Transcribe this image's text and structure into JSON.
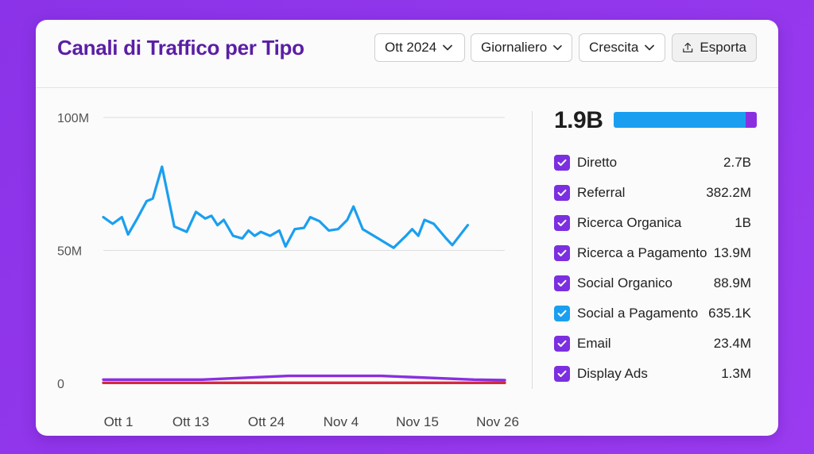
{
  "header": {
    "title": "Canali di Traffico per Tipo",
    "month_select": "Ott 2024",
    "granularity_select": "Giornaliero",
    "mode_select": "Crescita",
    "export_label": "Esporta"
  },
  "summary": {
    "total": "1.9B",
    "bar_colors": [
      "#1a9ff0",
      "#8a2fe0"
    ],
    "bar_fractions": [
      0.92,
      0.08
    ]
  },
  "legend": [
    {
      "label": "Diretto",
      "value": "2.7B",
      "color": "#7b2fe0",
      "checked": true
    },
    {
      "label": "Referral",
      "value": "382.2M",
      "color": "#7b2fe0",
      "checked": true
    },
    {
      "label": "Ricerca Organica",
      "value": "1B",
      "color": "#7b2fe0",
      "checked": true
    },
    {
      "label": "Ricerca a Pagamento",
      "value": "13.9M",
      "color": "#7b2fe0",
      "checked": true
    },
    {
      "label": "Social Organico",
      "value": "88.9M",
      "color": "#7b2fe0",
      "checked": true
    },
    {
      "label": "Social a Pagamento",
      "value": "635.1K",
      "color": "#1a9ff0",
      "checked": true
    },
    {
      "label": "Email",
      "value": "23.4M",
      "color": "#7b2fe0",
      "checked": true
    },
    {
      "label": "Display Ads",
      "value": "1.3M",
      "color": "#7b2fe0",
      "checked": true
    }
  ],
  "chart_data": {
    "type": "line",
    "title": "Canali di Traffico per Tipo",
    "xlabel": "",
    "ylabel": "",
    "x_ticks": [
      "Ott 1",
      "Ott 13",
      "Ott 24",
      "Nov 4",
      "Nov 15",
      "Nov 26"
    ],
    "y_ticks": [
      "0",
      "50M",
      "100M"
    ],
    "ylim": [
      0,
      100
    ],
    "y_units": "M",
    "grid": true,
    "series": [
      {
        "color": "#1a9ff0",
        "points": [
          [
            0,
            62.5
          ],
          [
            1.5,
            60
          ],
          [
            3,
            62.5
          ],
          [
            4,
            56
          ],
          [
            5.5,
            62
          ],
          [
            7,
            68.5
          ],
          [
            8,
            69.5
          ],
          [
            9.5,
            81.5
          ],
          [
            11.5,
            59
          ],
          [
            13.5,
            57
          ],
          [
            15,
            64.5
          ],
          [
            16.5,
            62
          ],
          [
            17.5,
            63
          ],
          [
            18.5,
            59.5
          ],
          [
            19.5,
            61.5
          ],
          [
            21,
            55.5
          ],
          [
            22.5,
            54.5
          ],
          [
            23.5,
            57.5
          ],
          [
            24.5,
            55.5
          ],
          [
            25.5,
            57
          ],
          [
            27,
            55.5
          ],
          [
            28.5,
            57.5
          ],
          [
            29.5,
            51.5
          ],
          [
            31,
            58
          ],
          [
            32.5,
            58.5
          ],
          [
            33.5,
            62.5
          ],
          [
            35,
            61
          ],
          [
            36.5,
            57.5
          ],
          [
            38,
            58
          ],
          [
            39.5,
            61.5
          ],
          [
            40.5,
            66.5
          ],
          [
            42,
            58
          ],
          [
            44.5,
            54.5
          ],
          [
            47,
            51
          ],
          [
            49,
            55.5
          ],
          [
            50,
            58
          ],
          [
            51,
            55.5
          ],
          [
            52,
            61.5
          ],
          [
            53.5,
            60
          ],
          [
            55.5,
            54.5
          ],
          [
            56.5,
            52
          ],
          [
            59,
            59.5
          ]
        ]
      },
      {
        "color": "#8a2fe0",
        "points": [
          [
            0,
            1.4
          ],
          [
            16,
            1.4
          ],
          [
            30,
            2.8
          ],
          [
            45,
            2.8
          ],
          [
            60,
            1.4
          ],
          [
            65,
            1.2
          ]
        ]
      },
      {
        "color": "#d42a3c",
        "points": [
          [
            0,
            0.2
          ],
          [
            65,
            0.2
          ]
        ]
      }
    ]
  }
}
